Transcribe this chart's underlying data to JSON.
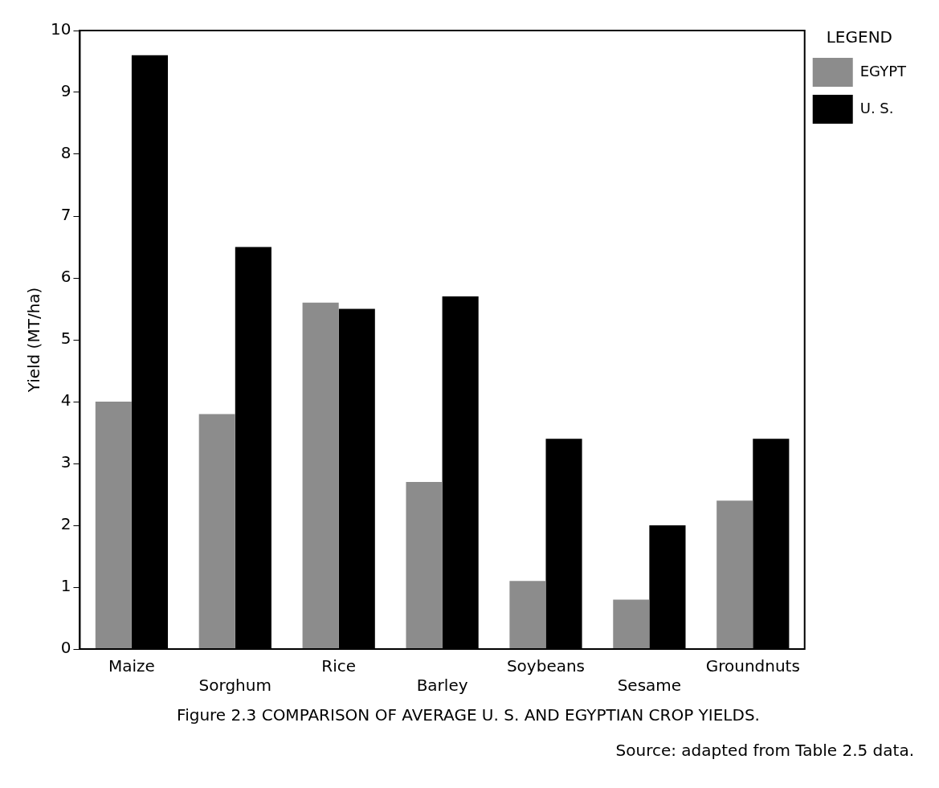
{
  "chart_data": {
    "type": "bar",
    "title": "Figure 2.3 COMPARISON OF AVERAGE U. S. AND EGYPTIAN CROP YIELDS.",
    "ylabel": "Yield (MT/ha)",
    "legend_title": "LEGEND",
    "annotations": [
      "Source: adapted from Table 2.5 data."
    ],
    "categories": [
      "Maize",
      "Sorghum",
      "Rice",
      "Barley",
      "Soybeans",
      "Sesame",
      "Groundnuts"
    ],
    "series": [
      {
        "name": "EGYPT",
        "color": "#8c8c8c",
        "values": [
          4.0,
          3.8,
          5.6,
          2.7,
          1.1,
          0.8,
          2.4
        ]
      },
      {
        "name": "U. S.",
        "color": "#000000",
        "values": [
          9.6,
          6.5,
          5.5,
          5.7,
          3.4,
          2.0,
          3.4
        ]
      }
    ],
    "ylim": [
      0,
      10
    ],
    "yticks": [
      0,
      1,
      2,
      3,
      4,
      5,
      6,
      7,
      8,
      9,
      10
    ],
    "grid": false,
    "legend": "top right"
  }
}
